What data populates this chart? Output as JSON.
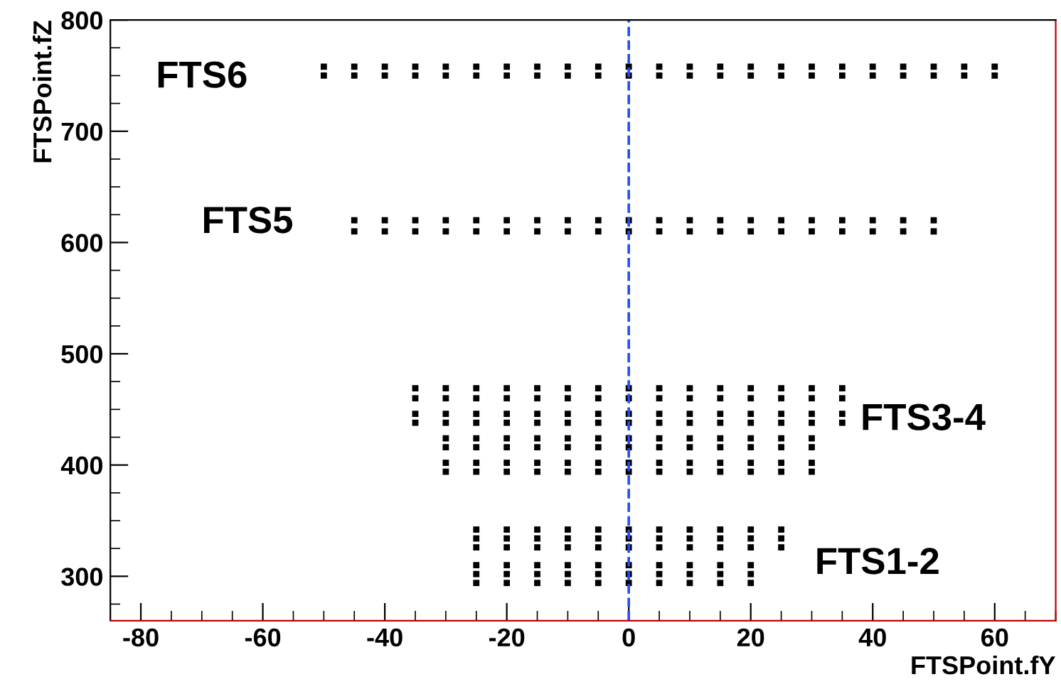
{
  "chart_data": {
    "type": "scatter",
    "xlabel": "FTSPoint.fY",
    "ylabel": "FTSPoint.fZ",
    "xlim": [
      -85,
      70
    ],
    "ylim": [
      260,
      800
    ],
    "xticks": [
      -80,
      -60,
      -40,
      -20,
      0,
      20,
      40,
      60
    ],
    "yticks": [
      300,
      400,
      500,
      600,
      700,
      800
    ],
    "grid": false,
    "marker": "square",
    "series": [
      {
        "color": "#000000",
        "x": [
          -50,
          -45,
          -40,
          -35,
          -30,
          -25,
          -20,
          -15,
          -10,
          -5,
          0,
          5,
          10,
          15,
          20,
          25,
          30,
          35,
          40,
          45,
          50,
          55,
          60,
          -50,
          -45,
          -40,
          -35,
          -30,
          -25,
          -20,
          -15,
          -10,
          -5,
          0,
          5,
          10,
          15,
          20,
          25,
          30,
          35,
          40,
          45,
          50,
          55,
          60
        ],
        "values": [
          758,
          758,
          758,
          758,
          758,
          758,
          758,
          758,
          758,
          758,
          758,
          758,
          758,
          758,
          758,
          758,
          758,
          758,
          758,
          758,
          758,
          758,
          758,
          750,
          750,
          750,
          750,
          750,
          750,
          750,
          750,
          750,
          750,
          750,
          750,
          750,
          750,
          750,
          750,
          750,
          750,
          750,
          750,
          750,
          750,
          750
        ]
      },
      {
        "color": "#000000",
        "x": [
          -45,
          -40,
          -35,
          -30,
          -25,
          -20,
          -15,
          -10,
          -5,
          0,
          5,
          10,
          15,
          20,
          25,
          30,
          35,
          40,
          45,
          50,
          -45,
          -40,
          -35,
          -30,
          -25,
          -20,
          -15,
          -10,
          -5,
          0,
          5,
          10,
          15,
          20,
          25,
          30,
          35,
          40,
          45,
          50
        ],
        "values": [
          620,
          620,
          620,
          620,
          620,
          620,
          620,
          620,
          620,
          620,
          620,
          620,
          620,
          620,
          620,
          620,
          620,
          620,
          620,
          620,
          610,
          610,
          610,
          610,
          610,
          610,
          610,
          610,
          610,
          610,
          610,
          610,
          610,
          610,
          610,
          610,
          610,
          610,
          610,
          610
        ]
      },
      {
        "color": "#000000",
        "x": [
          -35,
          -30,
          -25,
          -20,
          -15,
          -10,
          -5,
          0,
          5,
          10,
          15,
          20,
          25,
          30,
          35,
          -35,
          -30,
          -25,
          -20,
          -15,
          -10,
          -5,
          0,
          5,
          10,
          15,
          20,
          25,
          30,
          35,
          -35,
          -30,
          -25,
          -20,
          -15,
          -10,
          -5,
          0,
          5,
          10,
          15,
          20,
          25,
          30,
          35,
          -35,
          -30,
          -25,
          -20,
          -15,
          -10,
          -5,
          0,
          5,
          10,
          15,
          20,
          25,
          30,
          35,
          -30,
          -25,
          -20,
          -15,
          -10,
          -5,
          0,
          5,
          10,
          15,
          20,
          25,
          30,
          -30,
          -25,
          -20,
          -15,
          -10,
          -5,
          0,
          5,
          10,
          15,
          20,
          25,
          30,
          -30,
          -25,
          -20,
          -15,
          -10,
          -5,
          0,
          5,
          10,
          15,
          20,
          25,
          30,
          -30,
          -25,
          -20,
          -15,
          -10,
          -5,
          0,
          5,
          10,
          15,
          20,
          25,
          30
        ],
        "values": [
          469,
          469,
          469,
          469,
          469,
          469,
          469,
          469,
          469,
          469,
          469,
          469,
          469,
          469,
          469,
          460,
          460,
          460,
          460,
          460,
          460,
          460,
          460,
          460,
          460,
          460,
          460,
          460,
          460,
          460,
          446,
          446,
          446,
          446,
          446,
          446,
          446,
          446,
          446,
          446,
          446,
          446,
          446,
          446,
          446,
          438,
          438,
          438,
          438,
          438,
          438,
          438,
          438,
          438,
          438,
          438,
          438,
          438,
          438,
          438,
          424,
          424,
          424,
          424,
          424,
          424,
          424,
          424,
          424,
          424,
          424,
          424,
          424,
          416,
          416,
          416,
          416,
          416,
          416,
          416,
          416,
          416,
          416,
          416,
          416,
          416,
          402,
          402,
          402,
          402,
          402,
          402,
          402,
          402,
          402,
          402,
          402,
          402,
          402,
          394,
          394,
          394,
          394,
          394,
          394,
          394,
          394,
          394,
          394,
          394,
          394,
          394
        ]
      },
      {
        "color": "#000000",
        "x": [
          -25,
          -20,
          -15,
          -10,
          -5,
          0,
          5,
          10,
          15,
          20,
          25,
          -25,
          -20,
          -15,
          -10,
          -5,
          0,
          5,
          10,
          15,
          20,
          25,
          -25,
          -20,
          -15,
          -10,
          -5,
          0,
          5,
          10,
          15,
          20,
          25,
          -25,
          -20,
          -15,
          -10,
          -5,
          0,
          5,
          10,
          15,
          20,
          -25,
          -20,
          -15,
          -10,
          -5,
          0,
          5,
          10,
          15,
          20,
          -25,
          -20,
          -15,
          -10,
          -5,
          0,
          5,
          10,
          15,
          20
        ],
        "values": [
          342,
          342,
          342,
          342,
          342,
          342,
          342,
          342,
          342,
          342,
          342,
          334,
          334,
          334,
          334,
          334,
          334,
          334,
          334,
          334,
          334,
          334,
          326,
          326,
          326,
          326,
          326,
          326,
          326,
          326,
          326,
          326,
          326,
          310,
          310,
          310,
          310,
          310,
          310,
          310,
          310,
          310,
          310,
          302,
          302,
          302,
          302,
          302,
          302,
          302,
          302,
          302,
          302,
          294,
          294,
          294,
          294,
          294,
          294,
          294,
          294,
          294,
          294
        ]
      }
    ],
    "ref_lines": [
      {
        "axis": "x",
        "value": 0,
        "color": "#1f4fff",
        "line_style": "dashed"
      }
    ],
    "annotations": [
      "FTS6",
      "FTS5",
      "FTS3-4",
      "FTS1-2"
    ]
  }
}
